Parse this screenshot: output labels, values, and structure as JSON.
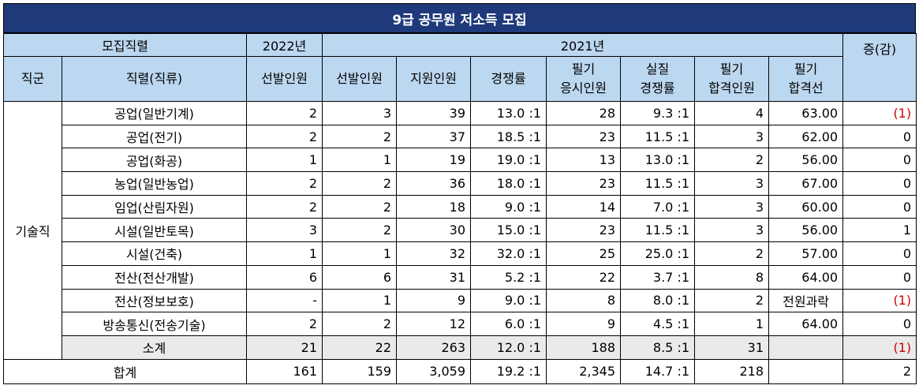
{
  "title": "9급 공무원 저소득 모집",
  "header": {
    "group_label": "모집직렬",
    "year_2022": "2022년",
    "year_2021": "2021년",
    "change": "증(감)",
    "col_group": "직군",
    "col_position": "직렬(직류)",
    "col_2022_selected": "선발인원",
    "col_2021_selected": "선발인원",
    "col_applicants": "지원인원",
    "col_competition": "경쟁률",
    "col_written_takers": "필기\n응시인원",
    "col_real_competition": "실질\n경쟁률",
    "col_written_passed": "필기\n합격인원",
    "col_cutline": "필기\n합격선"
  },
  "group_name": "기술직",
  "rows": [
    {
      "name": "공업(일반기계)",
      "sel2022": "2",
      "sel2021": "3",
      "applicants": "39",
      "ratio": "13.0 :1",
      "takers": "28",
      "real_ratio": "9.3 :1",
      "passed": "4",
      "cutline": "63.00",
      "change": "(1)",
      "neg": true
    },
    {
      "name": "공업(전기)",
      "sel2022": "2",
      "sel2021": "2",
      "applicants": "37",
      "ratio": "18.5 :1",
      "takers": "23",
      "real_ratio": "11.5 :1",
      "passed": "3",
      "cutline": "62.00",
      "change": "0",
      "neg": false
    },
    {
      "name": "공업(화공)",
      "sel2022": "1",
      "sel2021": "1",
      "applicants": "19",
      "ratio": "19.0 :1",
      "takers": "13",
      "real_ratio": "13.0 :1",
      "passed": "2",
      "cutline": "56.00",
      "change": "0",
      "neg": false
    },
    {
      "name": "농업(일반농업)",
      "sel2022": "2",
      "sel2021": "2",
      "applicants": "36",
      "ratio": "18.0 :1",
      "takers": "23",
      "real_ratio": "11.5 :1",
      "passed": "3",
      "cutline": "67.00",
      "change": "0",
      "neg": false
    },
    {
      "name": "임업(산림자원)",
      "sel2022": "2",
      "sel2021": "2",
      "applicants": "18",
      "ratio": "9.0 :1",
      "takers": "14",
      "real_ratio": "7.0 :1",
      "passed": "3",
      "cutline": "60.00",
      "change": "0",
      "neg": false
    },
    {
      "name": "시설(일반토목)",
      "sel2022": "3",
      "sel2021": "2",
      "applicants": "30",
      "ratio": "15.0 :1",
      "takers": "23",
      "real_ratio": "11.5 :1",
      "passed": "3",
      "cutline": "56.00",
      "change": "1",
      "neg": false
    },
    {
      "name": "시설(건축)",
      "sel2022": "1",
      "sel2021": "1",
      "applicants": "32",
      "ratio": "32.0 :1",
      "takers": "25",
      "real_ratio": "25.0 :1",
      "passed": "2",
      "cutline": "57.00",
      "change": "0",
      "neg": false
    },
    {
      "name": "전산(전산개발)",
      "sel2022": "6",
      "sel2021": "6",
      "applicants": "31",
      "ratio": "5.2 :1",
      "takers": "22",
      "real_ratio": "3.7 :1",
      "passed": "8",
      "cutline": "64.00",
      "change": "0",
      "neg": false
    },
    {
      "name": "전산(정보보호)",
      "sel2022": "-",
      "sel2021": "1",
      "applicants": "9",
      "ratio": "9.0 :1",
      "takers": "8",
      "real_ratio": "8.0 :1",
      "passed": "2",
      "cutline": "전원과락",
      "change": "(1)",
      "neg": true
    },
    {
      "name": "방송통신(전송기술)",
      "sel2022": "2",
      "sel2021": "2",
      "applicants": "12",
      "ratio": "6.0 :1",
      "takers": "9",
      "real_ratio": "4.5 :1",
      "passed": "1",
      "cutline": "64.00",
      "change": "0",
      "neg": false
    }
  ],
  "subtotal": {
    "name": "소계",
    "sel2022": "21",
    "sel2021": "22",
    "applicants": "263",
    "ratio": "12.0 :1",
    "takers": "188",
    "real_ratio": "8.5 :1",
    "passed": "31",
    "cutline": "",
    "change": "(1)",
    "neg": true
  },
  "total": {
    "name": "합계",
    "sel2022": "161",
    "sel2021": "159",
    "applicants": "3,059",
    "ratio": "19.2 :1",
    "takers": "2,345",
    "real_ratio": "14.7 :1",
    "passed": "218",
    "cutline": "",
    "change": "2",
    "neg": false
  },
  "colors": {
    "title_bg": "#1f3a7a",
    "header_bg": "#bcd7f0",
    "subtotal_bg": "#eaeaea",
    "negative": "#d00000"
  }
}
